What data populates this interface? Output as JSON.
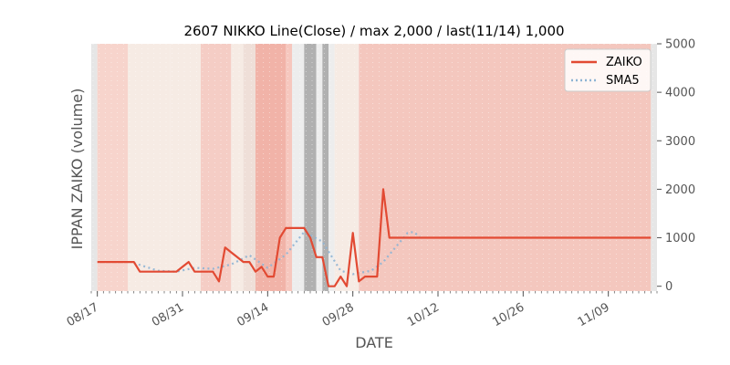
{
  "chart_data": {
    "type": "line",
    "title": "2607 NIKKO Line(Close) / max 2,000 / last(11/14) 1,000",
    "xlabel": "DATE",
    "ylabel": "IPPAN ZAIKO (volume)",
    "y_axis_side": "right",
    "ylim": [
      -100,
      5000
    ],
    "yticks": [
      0,
      1000,
      2000,
      3000,
      4000,
      5000
    ],
    "ytick_labels": [
      "0",
      "1000",
      "2000",
      "3000",
      "4000",
      "5000"
    ],
    "x_start": "2020-08-16",
    "x_end": "2020-11-17",
    "xticks": [
      "2020-08-17",
      "2020-08-31",
      "2020-09-14",
      "2020-09-28",
      "2020-10-12",
      "2020-10-26",
      "2020-11-09"
    ],
    "xtick_labels": [
      "08/17",
      "08/31",
      "09/14",
      "09/28",
      "10/12",
      "10/26",
      "11/09"
    ],
    "grid": false,
    "legend_position": "top-right",
    "background_bands": [
      {
        "start": "2020-08-16",
        "end": "2020-08-17",
        "color": "#e6e6e6"
      },
      {
        "start": "2020-08-17",
        "end": "2020-08-22",
        "color": "#f7d4cc"
      },
      {
        "start": "2020-08-22",
        "end": "2020-08-29",
        "color": "#f6ebe4"
      },
      {
        "start": "2020-08-29",
        "end": "2020-09-03",
        "color": "#f6ebe4"
      },
      {
        "start": "2020-09-03",
        "end": "2020-09-08",
        "color": "#f5cdc5"
      },
      {
        "start": "2020-09-08",
        "end": "2020-09-10",
        "color": "#f6ebe4"
      },
      {
        "start": "2020-09-10",
        "end": "2020-09-12",
        "color": "#efdfd8"
      },
      {
        "start": "2020-09-12",
        "end": "2020-09-17",
        "color": "#f1b3a8"
      },
      {
        "start": "2020-09-17",
        "end": "2020-09-18",
        "color": "#f6c7be"
      },
      {
        "start": "2020-09-18",
        "end": "2020-09-20",
        "color": "#ededed"
      },
      {
        "start": "2020-09-20",
        "end": "2020-09-22",
        "color": "#b0b0b0"
      },
      {
        "start": "2020-09-22",
        "end": "2020-09-23",
        "color": "#ededed"
      },
      {
        "start": "2020-09-23",
        "end": "2020-09-24",
        "color": "#b0b0b0"
      },
      {
        "start": "2020-09-24",
        "end": "2020-09-25",
        "color": "#ededed"
      },
      {
        "start": "2020-09-25",
        "end": "2020-09-29",
        "color": "#f6ebe4"
      },
      {
        "start": "2020-09-29",
        "end": "2020-11-16",
        "color": "#f4c7be"
      },
      {
        "start": "2020-11-16",
        "end": "2020-11-17",
        "color": "#e6e6e6"
      }
    ],
    "series": [
      {
        "name": "ZAIKO",
        "color": "#e24a33",
        "style": "solid",
        "points": [
          [
            "2020-08-17",
            500
          ],
          [
            "2020-08-23",
            500
          ],
          [
            "2020-08-24",
            300
          ],
          [
            "2020-08-30",
            300
          ],
          [
            "2020-08-31",
            400
          ],
          [
            "2020-09-01",
            500
          ],
          [
            "2020-09-02",
            300
          ],
          [
            "2020-09-05",
            300
          ],
          [
            "2020-09-06",
            100
          ],
          [
            "2020-09-07",
            800
          ],
          [
            "2020-09-08",
            700
          ],
          [
            "2020-09-09",
            600
          ],
          [
            "2020-09-10",
            500
          ],
          [
            "2020-09-11",
            500
          ],
          [
            "2020-09-12",
            300
          ],
          [
            "2020-09-13",
            400
          ],
          [
            "2020-09-14",
            200
          ],
          [
            "2020-09-15",
            200
          ],
          [
            "2020-09-16",
            1000
          ],
          [
            "2020-09-17",
            1200
          ],
          [
            "2020-09-20",
            1200
          ],
          [
            "2020-09-21",
            1000
          ],
          [
            "2020-09-22",
            600
          ],
          [
            "2020-09-23",
            600
          ],
          [
            "2020-09-24",
            0
          ],
          [
            "2020-09-25",
            0
          ],
          [
            "2020-09-26",
            200
          ],
          [
            "2020-09-27",
            0
          ],
          [
            "2020-09-28",
            1100
          ],
          [
            "2020-09-29",
            100
          ],
          [
            "2020-09-30",
            200
          ],
          [
            "2020-10-02",
            200
          ],
          [
            "2020-10-03",
            2000
          ],
          [
            "2020-10-04",
            1000
          ],
          [
            "2020-11-16",
            1000
          ]
        ]
      },
      {
        "name": "SMA5",
        "color": "#8eb4d4",
        "style": "dotted",
        "points": [
          [
            "2020-08-23",
            480
          ],
          [
            "2020-08-27",
            320
          ],
          [
            "2020-08-30",
            300
          ],
          [
            "2020-09-02",
            380
          ],
          [
            "2020-09-05",
            360
          ],
          [
            "2020-09-08",
            450
          ],
          [
            "2020-09-11",
            640
          ],
          [
            "2020-09-14",
            380
          ],
          [
            "2020-09-17",
            650
          ],
          [
            "2020-09-20",
            1120
          ],
          [
            "2020-09-23",
            920
          ],
          [
            "2020-09-26",
            320
          ],
          [
            "2020-09-28",
            250
          ],
          [
            "2020-10-01",
            320
          ],
          [
            "2020-10-03",
            500
          ],
          [
            "2020-10-07",
            1100
          ],
          [
            "2020-10-08",
            1120
          ],
          [
            "2020-10-09",
            1020
          ]
        ]
      }
    ]
  }
}
